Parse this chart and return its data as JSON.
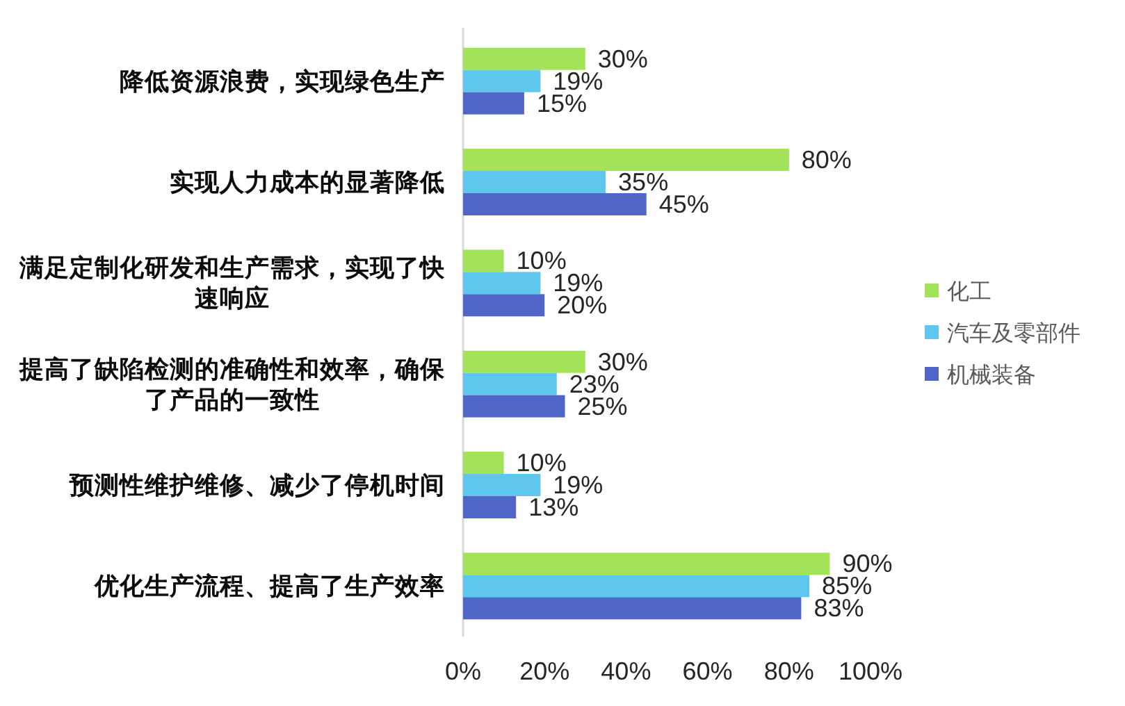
{
  "chart_data": {
    "type": "bar",
    "orientation": "horizontal",
    "categories": [
      "降低资源浪费，实现绿色生产",
      "实现人力成本的显著降低",
      "满足定制化研发和生产需求，实现了快速响应",
      "提高了缺陷检测的准确性和效率，确保了产品的一致性",
      "预测性维护维修、减少了停机时间",
      "优化生产流程、提高了生产效率"
    ],
    "series": [
      {
        "name": "化工",
        "color": "#a3e35a",
        "values": [
          30,
          80,
          10,
          30,
          10,
          90
        ],
        "value_labels": [
          "30%",
          "80%",
          "10%",
          "30%",
          "10%",
          "90%"
        ]
      },
      {
        "name": "汽车及零部件",
        "color": "#5fc6ee",
        "values": [
          19,
          35,
          19,
          23,
          19,
          85
        ],
        "value_labels": [
          "19%",
          "35%",
          "19%",
          "23%",
          "19%",
          "85%"
        ]
      },
      {
        "name": "机械装备",
        "color": "#4f66c6",
        "values": [
          15,
          45,
          20,
          25,
          13,
          83
        ],
        "value_labels": [
          "15%",
          "45%",
          "20%",
          "25%",
          "13%",
          "83%"
        ]
      }
    ],
    "xlim": [
      0,
      100
    ],
    "xticks": [
      {
        "value": 0,
        "label": "0%"
      },
      {
        "value": 20,
        "label": "20%"
      },
      {
        "value": 40,
        "label": "40%"
      },
      {
        "value": 60,
        "label": "60%"
      },
      {
        "value": 80,
        "label": "80%"
      },
      {
        "value": 100,
        "label": "100%"
      }
    ],
    "legend": "right"
  }
}
